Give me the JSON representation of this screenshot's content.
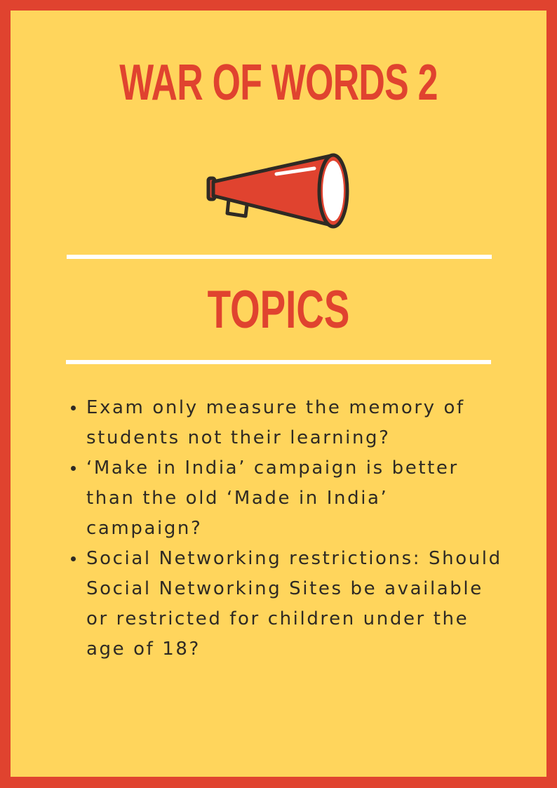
{
  "poster": {
    "title": "WAR OF WORDS 2",
    "heading": "TOPICS",
    "icon": "megaphone-icon",
    "topics": [
      "Exam only measure the memory of students not their learning?",
      "‘Make in India’ campaign is better than the old ‘Made in India’ campaign?",
      "Social Networking restrictions: Should Social Networking Sites be available  or restricted for children under the age of 18?"
    ]
  },
  "colors": {
    "border": "#e0432f",
    "background": "#ffd55c",
    "accent": "#e0432f",
    "divider": "#ffffff",
    "text": "#2f2a24"
  }
}
